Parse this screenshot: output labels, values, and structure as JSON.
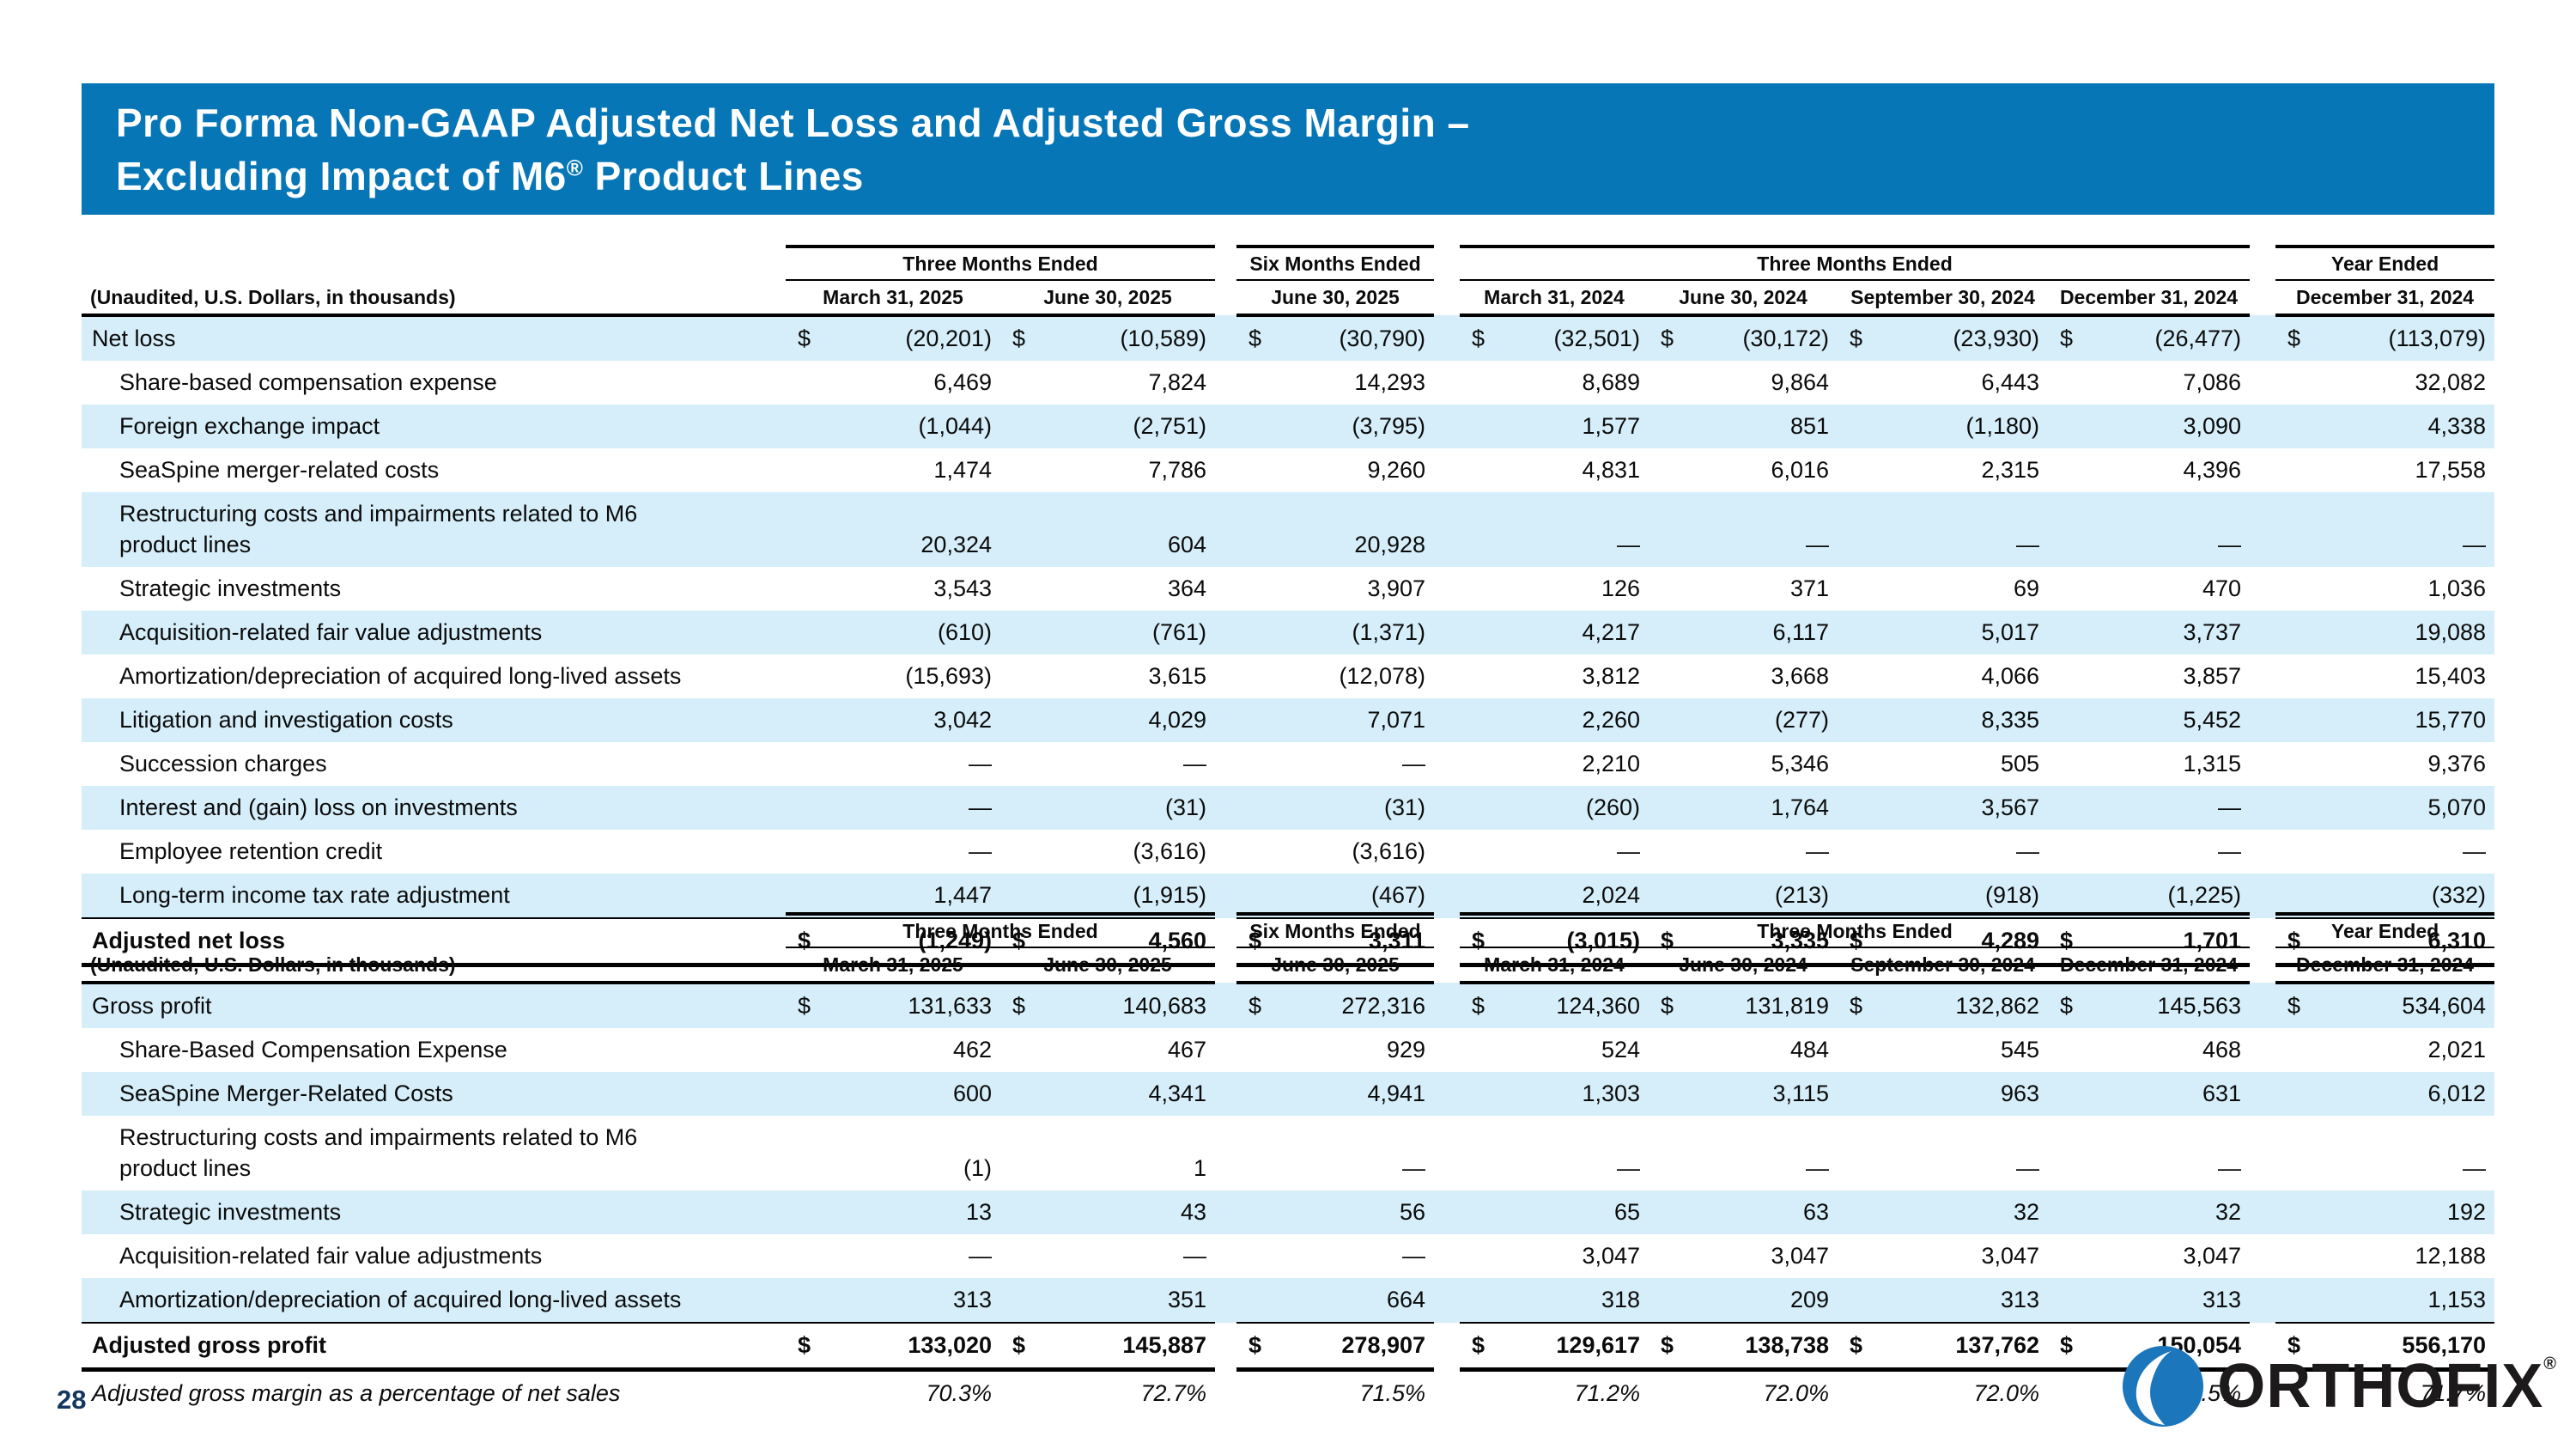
{
  "slide": {
    "title_line1": "Pro Forma Non-GAAP Adjusted Net Loss and Adjusted Gross Margin –",
    "title_line2_pre": "Excluding Impact of M6",
    "title_reg": "®",
    "title_line2_post": " Product Lines",
    "page_number": "28"
  },
  "logo": {
    "icon": "orthofix-sphere-icon",
    "text": "ORTHOFIX",
    "registered": "®"
  },
  "colors": {
    "banner_blue": "#0676b6",
    "row_stripe_blue": "#d6eef9",
    "page_number_navy": "#14375f",
    "logo_blue": "#1b76bc"
  },
  "currency_symbol": "$",
  "tables": [
    {
      "name": "adjusted-net-loss-table",
      "unaudited_label": "(Unaudited, U.S. Dollars, in thousands)",
      "groups": [
        {
          "label": "Three Months Ended",
          "span": 2
        },
        {
          "label": "Six Months Ended",
          "span": 1
        },
        {
          "label": "Three Months Ended",
          "span": 4
        },
        {
          "label": "Year Ended",
          "span": 1
        }
      ],
      "date_columns": [
        "March 31, 2025",
        "June 30, 2025",
        "June 30, 2025",
        "March 31, 2024",
        "June 30, 2024",
        "September 30, 2024",
        "December 31, 2024",
        "December 31, 2024"
      ],
      "rows": [
        {
          "label": "Net loss",
          "indent": false,
          "dollar": true,
          "stripe": true,
          "values": [
            "(20,201)",
            "(10,589)",
            "(30,790)",
            "(32,501)",
            "(30,172)",
            "(23,930)",
            "(26,477)",
            "(113,079)"
          ]
        },
        {
          "label": "Share-based compensation expense",
          "indent": true,
          "stripe": false,
          "values": [
            "6,469",
            "7,824",
            "14,293",
            "8,689",
            "9,864",
            "6,443",
            "7,086",
            "32,082"
          ]
        },
        {
          "label": "Foreign exchange impact",
          "indent": true,
          "stripe": true,
          "values": [
            "(1,044)",
            "(2,751)",
            "(3,795)",
            "1,577",
            "851",
            "(1,180)",
            "3,090",
            "4,338"
          ]
        },
        {
          "label": "SeaSpine merger-related costs",
          "indent": true,
          "stripe": false,
          "values": [
            "1,474",
            "7,786",
            "9,260",
            "4,831",
            "6,016",
            "2,315",
            "4,396",
            "17,558"
          ]
        },
        {
          "label": "Restructuring costs and impairments related to M6",
          "label2": "product lines",
          "indent": true,
          "stripe": true,
          "values": [
            "20,324",
            "604",
            "20,928",
            "—",
            "—",
            "—",
            "—",
            "—"
          ]
        },
        {
          "label": "Strategic investments",
          "indent": true,
          "stripe": false,
          "values": [
            "3,543",
            "364",
            "3,907",
            "126",
            "371",
            "69",
            "470",
            "1,036"
          ]
        },
        {
          "label": "Acquisition-related fair value adjustments",
          "indent": true,
          "stripe": true,
          "values": [
            "(610)",
            "(761)",
            "(1,371)",
            "4,217",
            "6,117",
            "5,017",
            "3,737",
            "19,088"
          ]
        },
        {
          "label": "Amortization/depreciation of acquired long-lived assets",
          "indent": true,
          "stripe": false,
          "values": [
            "(15,693)",
            "3,615",
            "(12,078)",
            "3,812",
            "3,668",
            "4,066",
            "3,857",
            "15,403"
          ]
        },
        {
          "label": "Litigation and investigation costs",
          "indent": true,
          "stripe": true,
          "values": [
            "3,042",
            "4,029",
            "7,071",
            "2,260",
            "(277)",
            "8,335",
            "5,452",
            "15,770"
          ]
        },
        {
          "label": "Succession charges",
          "indent": true,
          "stripe": false,
          "values": [
            "—",
            "—",
            "—",
            "2,210",
            "5,346",
            "505",
            "1,315",
            "9,376"
          ]
        },
        {
          "label": "Interest and (gain) loss on investments",
          "indent": true,
          "stripe": true,
          "values": [
            "—",
            "(31)",
            "(31)",
            "(260)",
            "1,764",
            "3,567",
            "—",
            "5,070"
          ]
        },
        {
          "label": "Employee retention credit",
          "indent": true,
          "stripe": false,
          "values": [
            "—",
            "(3,616)",
            "(3,616)",
            "—",
            "—",
            "—",
            "—",
            "—"
          ]
        },
        {
          "label": "Long-term income tax rate adjustment",
          "indent": true,
          "stripe": true,
          "values": [
            "1,447",
            "(1,915)",
            "(467)",
            "2,024",
            "(213)",
            "(918)",
            "(1,225)",
            "(332)"
          ]
        },
        {
          "label": "Adjusted net loss",
          "indent": false,
          "dollar": true,
          "stripe": false,
          "total": true,
          "values": [
            "(1,249)",
            "4,560",
            "3,311",
            "(3,015)",
            "3,335",
            "4,289",
            "1,701",
            "6,310"
          ]
        }
      ]
    },
    {
      "name": "adjusted-gross-margin-table",
      "unaudited_label": "(Unaudited, U.S. Dollars, in thousands)",
      "groups": [
        {
          "label": "Three Months Ended",
          "span": 2
        },
        {
          "label": "Six Months Ended",
          "span": 1
        },
        {
          "label": "Three Months Ended",
          "span": 4
        },
        {
          "label": "Year Ended",
          "span": 1
        }
      ],
      "date_columns": [
        "March 31, 2025",
        "June 30, 2025",
        "June 30, 2025",
        "March 31, 2024",
        "June 30, 2024",
        "September 30, 2024",
        "December 31, 2024",
        "December 31, 2024"
      ],
      "rows": [
        {
          "label": "Gross profit",
          "indent": false,
          "dollar": true,
          "stripe": true,
          "values": [
            "131,633",
            "140,683",
            "272,316",
            "124,360",
            "131,819",
            "132,862",
            "145,563",
            "534,604"
          ]
        },
        {
          "label": "Share-Based Compensation Expense",
          "indent": true,
          "stripe": false,
          "values": [
            "462",
            "467",
            "929",
            "524",
            "484",
            "545",
            "468",
            "2,021"
          ]
        },
        {
          "label": "SeaSpine Merger-Related Costs",
          "indent": true,
          "stripe": true,
          "values": [
            "600",
            "4,341",
            "4,941",
            "1,303",
            "3,115",
            "963",
            "631",
            "6,012"
          ]
        },
        {
          "label": "Restructuring costs and impairments related to M6",
          "label2": "product lines",
          "indent": true,
          "stripe": false,
          "values": [
            "(1)",
            "1",
            "—",
            "—",
            "—",
            "—",
            "—",
            "—"
          ]
        },
        {
          "label": "Strategic investments",
          "indent": true,
          "stripe": true,
          "values": [
            "13",
            "43",
            "56",
            "65",
            "63",
            "32",
            "32",
            "192"
          ]
        },
        {
          "label": "Acquisition-related fair value adjustments",
          "indent": true,
          "stripe": false,
          "values": [
            "—",
            "—",
            "—",
            "3,047",
            "3,047",
            "3,047",
            "3,047",
            "12,188"
          ]
        },
        {
          "label": "Amortization/depreciation of acquired long-lived assets",
          "indent": true,
          "stripe": true,
          "values": [
            "313",
            "351",
            "664",
            "318",
            "209",
            "313",
            "313",
            "1,153"
          ]
        },
        {
          "label": "Adjusted gross profit",
          "indent": false,
          "dollar": true,
          "stripe": false,
          "total": true,
          "values": [
            "133,020",
            "145,887",
            "278,907",
            "129,617",
            "138,738",
            "137,762",
            "150,054",
            "556,170"
          ]
        },
        {
          "label": "Adjusted gross margin as a percentage of net sales",
          "indent": false,
          "stripe": false,
          "italic": true,
          "values": [
            "70.3%",
            "72.7%",
            "71.5%",
            "71.2%",
            "72.0%",
            "72.0%",
            "71.5%",
            "71.7%"
          ]
        }
      ]
    }
  ]
}
